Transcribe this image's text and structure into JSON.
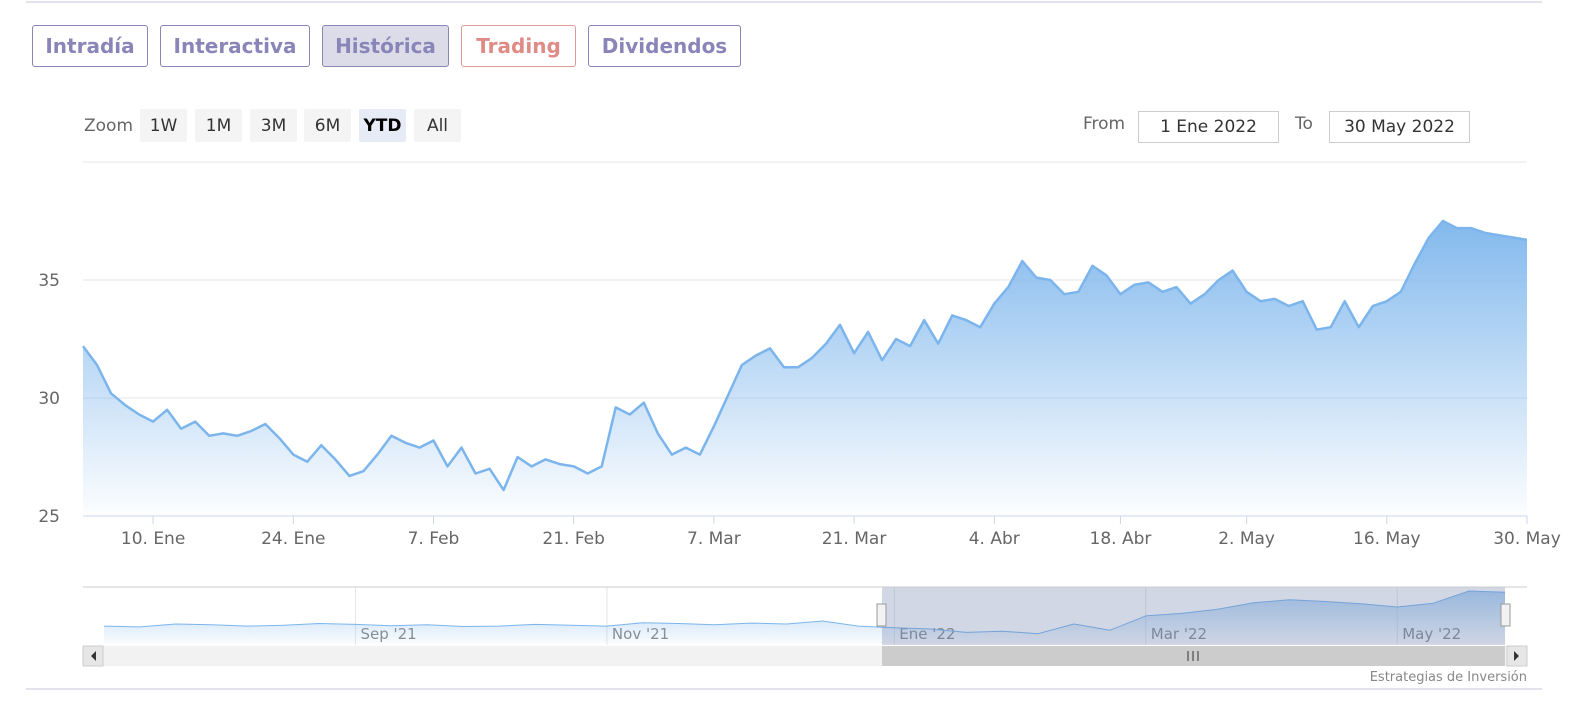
{
  "tabs": [
    "Intradía",
    "Interactiva",
    "Histórica",
    "Trading",
    "Dividendos"
  ],
  "zoom": {
    "label": "Zoom",
    "buttons": [
      "1W",
      "1M",
      "3M",
      "6M",
      "YTD",
      "All"
    ]
  },
  "range": {
    "from_label": "From",
    "from": "1 Ene 2022",
    "to_label": "To",
    "to": "30 May 2022"
  },
  "credit": "Estrategias de Inversión",
  "chart_data": [
    {
      "type": "area",
      "color": "#7cb5ec",
      "grid": true,
      "ylim": [
        25,
        40
      ],
      "yticks": [
        25,
        30,
        35
      ],
      "categories": [
        null,
        null,
        null,
        null,
        null,
        "10. Ene",
        null,
        null,
        null,
        null,
        null,
        null,
        null,
        null,
        null,
        "24. Ene",
        null,
        null,
        null,
        null,
        null,
        null,
        null,
        null,
        null,
        "7. Feb",
        null,
        null,
        null,
        null,
        null,
        null,
        null,
        null,
        null,
        "21. Feb",
        null,
        null,
        null,
        null,
        null,
        null,
        null,
        null,
        null,
        "7. Mar",
        null,
        null,
        null,
        null,
        null,
        null,
        null,
        null,
        null,
        "21. Mar",
        null,
        null,
        null,
        null,
        null,
        null,
        null,
        null,
        null,
        "4. Abr",
        null,
        null,
        null,
        null,
        null,
        null,
        null,
        null,
        "18. Abr",
        null,
        null,
        null,
        null,
        null,
        null,
        null,
        null,
        "2. May",
        null,
        null,
        null,
        null,
        null,
        null,
        null,
        null,
        null,
        "16. May",
        null,
        null,
        null,
        null,
        null,
        null,
        null,
        null,
        null,
        "30. May"
      ],
      "values": [
        32.2,
        31.4,
        30.2,
        29.7,
        29.3,
        29.0,
        29.5,
        28.7,
        29.0,
        28.4,
        28.5,
        28.4,
        28.6,
        28.9,
        28.3,
        27.6,
        27.3,
        28.0,
        27.4,
        26.7,
        26.9,
        27.6,
        28.4,
        28.1,
        27.9,
        28.2,
        27.1,
        27.9,
        26.8,
        27.0,
        26.1,
        27.5,
        27.1,
        27.4,
        27.2,
        27.1,
        26.8,
        27.1,
        29.6,
        29.3,
        29.8,
        28.5,
        27.6,
        27.9,
        27.6,
        28.8,
        30.1,
        31.4,
        31.8,
        32.1,
        31.3,
        31.3,
        31.7,
        32.3,
        33.1,
        31.9,
        32.8,
        31.6,
        32.5,
        32.2,
        33.3,
        32.3,
        33.5,
        33.3,
        33.0,
        34.0,
        34.7,
        35.8,
        35.1,
        35.0,
        34.4,
        34.5,
        35.6,
        35.2,
        34.4,
        34.8,
        34.9,
        34.5,
        34.7,
        34.0,
        34.4,
        35.0,
        35.4,
        34.5,
        34.1,
        34.2,
        33.9,
        34.1,
        32.9,
        33.0,
        34.1,
        33.0,
        33.9,
        34.1,
        34.5,
        35.7,
        36.8,
        37.5,
        37.2,
        37.2,
        37.0,
        36.9,
        36.8,
        36.7
      ]
    },
    {
      "type": "area",
      "color": "#7cb5ec",
      "grid": true,
      "ylim": [
        25,
        38
      ],
      "categories": [
        null,
        null,
        null,
        null,
        null,
        null,
        null,
        "Sep '21",
        null,
        null,
        null,
        null,
        null,
        null,
        "Nov '21",
        null,
        null,
        null,
        null,
        null,
        null,
        null,
        "Ene '22",
        null,
        null,
        null,
        null,
        null,
        null,
        "Mar '22",
        null,
        null,
        null,
        null,
        null,
        null,
        "May '22",
        null,
        null,
        null
      ],
      "values": [
        29.0,
        28.8,
        29.5,
        29.3,
        29.0,
        29.2,
        29.6,
        29.4,
        29.1,
        29.3,
        28.9,
        29.0,
        29.4,
        29.2,
        29.0,
        29.8,
        29.6,
        29.3,
        29.7,
        29.5,
        30.2,
        29.0,
        28.6,
        28.3,
        27.5,
        27.8,
        27.2,
        29.5,
        28.0,
        31.4,
        32.0,
        33.0,
        34.5,
        35.2,
        34.8,
        34.3,
        33.5,
        34.4,
        37.3,
        37.0
      ]
    }
  ]
}
